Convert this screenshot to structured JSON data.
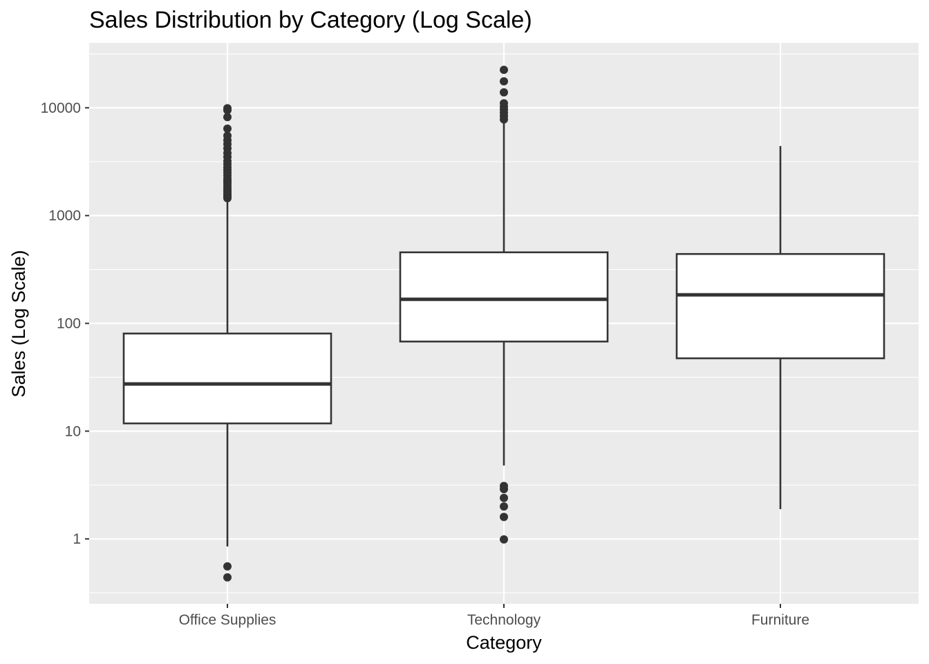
{
  "chart_data": {
    "type": "boxplot",
    "title": "Sales Distribution by Category (Log Scale)",
    "xlabel": "Category",
    "ylabel": "Sales (Log Scale)",
    "y_scale": "log10",
    "ylim": [
      0.25,
      40000
    ],
    "y_ticks": [
      1,
      10,
      100,
      1000,
      10000
    ],
    "y_tick_labels": [
      "1",
      "10",
      "100",
      "1000",
      "10000"
    ],
    "grid": true,
    "panel_background": "#ebebeb",
    "box_fill": "#ffffff",
    "line_color": "#333333",
    "categories": [
      "Office Supplies",
      "Technology",
      "Furniture"
    ],
    "boxes": [
      {
        "category": "Office Supplies",
        "whisker_low": 0.85,
        "q1": 11.8,
        "median": 27.4,
        "q3": 80.5,
        "whisker_high": 1440,
        "outliers": [
          0.44,
          0.556,
          1450,
          1480,
          1530,
          1580,
          1650,
          1720,
          1800,
          1900,
          2000,
          2100,
          2200,
          2350,
          2500,
          2650,
          2800,
          3000,
          3200,
          3500,
          3800,
          4200,
          4600,
          5000,
          5500,
          6400,
          8200,
          9500,
          9900
        ]
      },
      {
        "category": "Technology",
        "whisker_low": 4.8,
        "q1": 67.8,
        "median": 167,
        "q3": 456,
        "whisker_high": 7300,
        "outliers": [
          0.99,
          1.6,
          2.0,
          2.4,
          2.9,
          3.1,
          7800,
          8400,
          9000,
          9600,
          10200,
          11000,
          13900,
          17600,
          22500
        ]
      },
      {
        "category": "Furniture",
        "whisker_low": 1.89,
        "q1": 47.4,
        "median": 184,
        "q3": 440,
        "whisker_high": 4420,
        "outliers": []
      }
    ]
  }
}
